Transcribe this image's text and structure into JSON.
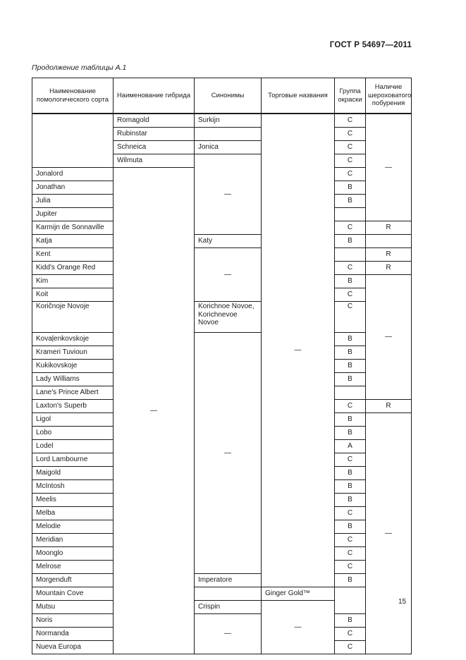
{
  "page": {
    "gost_code": "ГОСТ Р 54697—2011",
    "caption": "Продолжение таблицы А.1",
    "page_number": "15"
  },
  "table": {
    "columns": [
      {
        "key": "variety",
        "label": "Наименование помологического сорта"
      },
      {
        "key": "hybrid",
        "label": "Наименование гибрида"
      },
      {
        "key": "synonyms",
        "label": "Синонимы"
      },
      {
        "key": "trade",
        "label": "Торговые названия"
      },
      {
        "key": "group",
        "label": "Группа окраски"
      },
      {
        "key": "russeting",
        "label": "Наличие шероховатого побурения"
      }
    ],
    "dash": "—",
    "rows": [
      {
        "cells": [
          {
            "col": "variety",
            "text": "",
            "span": 4
          },
          {
            "col": "hybrid",
            "text": "Romagold"
          },
          {
            "col": "synonyms",
            "text": "Surkijn"
          },
          {
            "col": "trade",
            "text": "—",
            "span": 34,
            "center": true
          },
          {
            "col": "group",
            "text": "C",
            "center": true
          },
          {
            "col": "russeting",
            "text": "—",
            "span": 8,
            "center": true
          }
        ]
      },
      {
        "cells": [
          {
            "col": "hybrid",
            "text": "Rubinstar"
          },
          {
            "col": "synonyms",
            "text": ""
          },
          {
            "col": "group",
            "text": "C",
            "center": true
          }
        ]
      },
      {
        "cells": [
          {
            "col": "hybrid",
            "text": "Schneica"
          },
          {
            "col": "synonyms",
            "text": "Jonica"
          },
          {
            "col": "group",
            "text": "C",
            "center": true
          }
        ]
      },
      {
        "cells": [
          {
            "col": "hybrid",
            "text": "Wilmuta"
          },
          {
            "col": "synonyms",
            "text": "—",
            "span": 6,
            "center": true
          },
          {
            "col": "group",
            "text": "C",
            "center": true
          }
        ]
      },
      {
        "cells": [
          {
            "col": "variety",
            "text": "Jonalord"
          },
          {
            "col": "hybrid",
            "text": "—",
            "span": 35,
            "center": true
          },
          {
            "col": "group",
            "text": "C",
            "center": true
          }
        ]
      },
      {
        "cells": [
          {
            "col": "variety",
            "text": "Jonathan"
          },
          {
            "col": "group",
            "text": "B",
            "center": true
          }
        ]
      },
      {
        "cells": [
          {
            "col": "variety",
            "text": "Julia"
          },
          {
            "col": "group",
            "text": "B",
            "center": true
          }
        ]
      },
      {
        "cells": [
          {
            "col": "variety",
            "text": "Jupiter"
          },
          {
            "col": "group",
            "text": "",
            "center": true
          }
        ]
      },
      {
        "cells": [
          {
            "col": "variety",
            "text": "Karmijn de Sonnaville"
          },
          {
            "col": "group",
            "text": "C",
            "center": true
          },
          {
            "col": "russeting",
            "text": "R",
            "center": true
          }
        ]
      },
      {
        "cells": [
          {
            "col": "variety",
            "text": "Katja"
          },
          {
            "col": "synonyms",
            "text": "Katy"
          },
          {
            "col": "group",
            "text": "B",
            "center": true
          },
          {
            "col": "russeting",
            "text": "",
            "center": true
          }
        ]
      },
      {
        "cells": [
          {
            "col": "variety",
            "text": "Kent"
          },
          {
            "col": "synonyms",
            "text": "—",
            "span": 4,
            "center": true
          },
          {
            "col": "group",
            "text": "",
            "center": true
          },
          {
            "col": "russeting",
            "text": "R",
            "center": true
          }
        ]
      },
      {
        "cells": [
          {
            "col": "variety",
            "text": "Kidd's Orange Red"
          },
          {
            "col": "group",
            "text": "C",
            "center": true
          },
          {
            "col": "russeting",
            "text": "R",
            "center": true
          }
        ]
      },
      {
        "cells": [
          {
            "col": "variety",
            "text": "Kim"
          },
          {
            "col": "group",
            "text": "B",
            "center": true
          },
          {
            "col": "russeting",
            "text": "—",
            "span": 8,
            "center": true
          }
        ]
      },
      {
        "cells": [
          {
            "col": "variety",
            "text": "Koit"
          },
          {
            "col": "group",
            "text": "C",
            "center": true
          }
        ]
      },
      {
        "h": 44,
        "cells": [
          {
            "col": "variety",
            "text": "Koričnoje Novoje",
            "top": true
          },
          {
            "col": "synonyms",
            "text": "Korichnoe Novoe, Korichnevoe Novoe",
            "top": true
          },
          {
            "col": "group",
            "text": "C",
            "center": true,
            "top": true
          }
        ]
      },
      {
        "cells": [
          {
            "col": "variety",
            "text": "Kovaļenkovskoje"
          },
          {
            "col": "synonyms",
            "text": "—",
            "span": 18,
            "center": true
          },
          {
            "col": "group",
            "text": "B",
            "center": true
          }
        ]
      },
      {
        "cells": [
          {
            "col": "variety",
            "text": "Krameri Tuvioun"
          },
          {
            "col": "group",
            "text": "B",
            "center": true
          }
        ]
      },
      {
        "cells": [
          {
            "col": "variety",
            "text": "Kukikovskoje"
          },
          {
            "col": "group",
            "text": "B",
            "center": true
          }
        ]
      },
      {
        "cells": [
          {
            "col": "variety",
            "text": "Lady Williams"
          },
          {
            "col": "group",
            "text": "B",
            "center": true
          }
        ]
      },
      {
        "cells": [
          {
            "col": "variety",
            "text": "Lane's Prince Albert"
          },
          {
            "col": "group",
            "text": "",
            "center": true
          }
        ]
      },
      {
        "cells": [
          {
            "col": "variety",
            "text": "Laxton's Superb"
          },
          {
            "col": "group",
            "text": "C",
            "center": true
          },
          {
            "col": "russeting",
            "text": "R",
            "center": true
          }
        ]
      },
      {
        "cells": [
          {
            "col": "variety",
            "text": "Ligol"
          },
          {
            "col": "group",
            "text": "B",
            "center": true
          },
          {
            "col": "russeting",
            "text": "—",
            "span": 18,
            "center": true
          }
        ]
      },
      {
        "cells": [
          {
            "col": "variety",
            "text": "Lobo"
          },
          {
            "col": "group",
            "text": "B",
            "center": true
          }
        ]
      },
      {
        "cells": [
          {
            "col": "variety",
            "text": "Lodel"
          },
          {
            "col": "group",
            "text": "A",
            "center": true
          }
        ]
      },
      {
        "cells": [
          {
            "col": "variety",
            "text": "Lord Lambourne"
          },
          {
            "col": "group",
            "text": "C",
            "center": true
          }
        ]
      },
      {
        "cells": [
          {
            "col": "variety",
            "text": "Maigold"
          },
          {
            "col": "group",
            "text": "B",
            "center": true
          }
        ]
      },
      {
        "cells": [
          {
            "col": "variety",
            "text": "McIntosh"
          },
          {
            "col": "group",
            "text": "B",
            "center": true
          }
        ]
      },
      {
        "cells": [
          {
            "col": "variety",
            "text": "Meelis"
          },
          {
            "col": "group",
            "text": "B",
            "center": true
          }
        ]
      },
      {
        "cells": [
          {
            "col": "variety",
            "text": "Melba"
          },
          {
            "col": "group",
            "text": "C",
            "center": true
          }
        ]
      },
      {
        "cells": [
          {
            "col": "variety",
            "text": "Melodie"
          },
          {
            "col": "group",
            "text": "B",
            "center": true
          }
        ]
      },
      {
        "cells": [
          {
            "col": "variety",
            "text": "Meridian"
          },
          {
            "col": "group",
            "text": "C",
            "center": true
          }
        ]
      },
      {
        "cells": [
          {
            "col": "variety",
            "text": "Moonglo"
          },
          {
            "col": "group",
            "text": "C",
            "center": true
          }
        ]
      },
      {
        "cells": [
          {
            "col": "variety",
            "text": "Melrose"
          },
          {
            "col": "group",
            "text": "C",
            "center": true
          }
        ]
      },
      {
        "cells": [
          {
            "col": "variety",
            "text": "Morgenduft"
          },
          {
            "col": "synonyms",
            "text": "Imperatore"
          },
          {
            "col": "group",
            "text": "B",
            "center": true
          }
        ]
      },
      {
        "cells": [
          {
            "col": "variety",
            "text": "Mountain Cove"
          },
          {
            "col": "synonyms",
            "text": ""
          },
          {
            "col": "trade",
            "text": "Ginger Gold™"
          },
          {
            "col": "group",
            "text": "",
            "span": 2,
            "center": true
          }
        ]
      },
      {
        "cells": [
          {
            "col": "variety",
            "text": "Mutsu"
          },
          {
            "col": "synonyms",
            "text": "Crispin"
          },
          {
            "col": "trade",
            "text": "—",
            "span": 4,
            "center": true
          }
        ]
      },
      {
        "cells": [
          {
            "col": "variety",
            "text": "Noris"
          },
          {
            "col": "synonyms",
            "text": "—",
            "span": 3,
            "center": true
          },
          {
            "col": "group",
            "text": "B",
            "center": true
          }
        ]
      },
      {
        "cells": [
          {
            "col": "variety",
            "text": "Normanda"
          },
          {
            "col": "group",
            "text": "C",
            "center": true
          }
        ]
      },
      {
        "cells": [
          {
            "col": "variety",
            "text": "Nueva Europa"
          },
          {
            "col": "group",
            "text": "C",
            "center": true
          }
        ]
      }
    ]
  }
}
